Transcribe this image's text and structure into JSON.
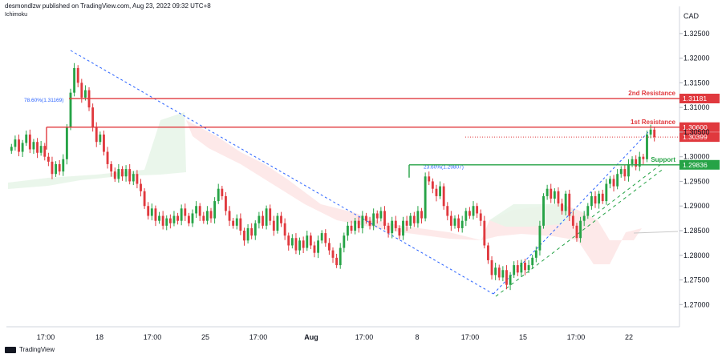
{
  "header": {
    "publisher": "desmondlzw published on TradingView.com, Aug 23, 2022 09:32 UTC+8",
    "indicator": "Ichimoku"
  },
  "footer": {
    "brand": "TradingView"
  },
  "colors": {
    "up": "#26a346",
    "down": "#e0393e",
    "resistance": "#e0393e",
    "support": "#26a346",
    "fib": "#2962ff",
    "cloud_green": "#e8f5e9",
    "cloud_red": "#fde7e7"
  },
  "chart_data": {
    "type": "candlestick",
    "currency_label": "CAD",
    "y_ticks": [
      "1.32500",
      "1.32000",
      "1.31500",
      "1.31000",
      "1.30500",
      "1.30000",
      "1.29500",
      "1.29000",
      "1.28500",
      "1.28000",
      "1.27500",
      "1.27000"
    ],
    "x_ticks": [
      "17:00",
      "18",
      "17:00",
      "25",
      "17:00",
      "Aug",
      "17:00",
      "8",
      "17:00",
      "15",
      "17:00",
      "22"
    ],
    "ylim": [
      1.2655,
      1.3305
    ],
    "levels": [
      {
        "name": "2nd Resistance",
        "price": 1.31181,
        "label": "1.31181",
        "type": "resistance"
      },
      {
        "name": "1st Resistance",
        "price": 1.306,
        "label": "1.30600",
        "type": "resistance"
      },
      {
        "name": "current",
        "price": 1.30399,
        "label": "1.30399",
        "type": "current"
      },
      {
        "name": "Support",
        "price": 1.29836,
        "label": "1.29836",
        "type": "support"
      }
    ],
    "annotations": [
      {
        "text": "78.60%(1.31169)",
        "price": 1.31169
      },
      {
        "text": "23.60%(1.29807)",
        "price": 1.29807
      }
    ],
    "closes": [
      1.302,
      1.3035,
      1.301,
      1.3028,
      1.3045,
      1.3015,
      1.303,
      1.3008,
      1.3022,
      1.3,
      1.299,
      1.2965,
      1.2985,
      1.297,
      1.2995,
      1.306,
      1.313,
      1.318,
      1.315,
      1.312,
      1.3135,
      1.31,
      1.306,
      1.303,
      1.3045,
      1.301,
      1.2985,
      1.297,
      1.2955,
      1.2975,
      1.296,
      1.2975,
      1.295,
      1.2965,
      1.2945,
      1.293,
      1.29,
      1.288,
      1.2895,
      1.287,
      1.288,
      1.286,
      1.2875,
      1.2865,
      1.288,
      1.287,
      1.2895,
      1.288,
      1.2865,
      1.2885,
      1.29,
      1.288,
      1.287,
      1.289,
      1.2875,
      1.291,
      1.2935,
      1.292,
      1.289,
      1.287,
      1.286,
      1.2875,
      1.285,
      1.283,
      1.2855,
      1.284,
      1.2865,
      1.288,
      1.286,
      1.2895,
      1.287,
      1.285,
      1.288,
      1.2865,
      1.284,
      1.282,
      1.2835,
      1.281,
      1.283,
      1.2815,
      1.284,
      1.282,
      1.2805,
      1.283,
      1.2845,
      1.2825,
      1.281,
      1.2795,
      1.278,
      1.2815,
      1.284,
      1.286,
      1.285,
      1.287,
      1.2855,
      1.288,
      1.287,
      1.286,
      1.2885,
      1.2875,
      1.289,
      1.286,
      1.2845,
      1.287,
      1.2855,
      1.284,
      1.287,
      1.286,
      1.288,
      1.2865,
      1.289,
      1.2875,
      1.296,
      1.295,
      1.2935,
      1.292,
      1.294,
      1.29,
      1.288,
      1.286,
      1.2875,
      1.2855,
      1.287,
      1.289,
      1.288,
      1.29,
      1.2885,
      1.287,
      1.282,
      1.279,
      1.276,
      1.2775,
      1.2755,
      1.277,
      1.274,
      1.276,
      1.278,
      1.2765,
      1.2785,
      1.277,
      1.278,
      1.2795,
      1.281,
      1.286,
      1.292,
      1.2935,
      1.2915,
      1.293,
      1.2905,
      1.289,
      1.2925,
      1.288,
      1.286,
      1.2835,
      1.287,
      1.288,
      1.29,
      1.292,
      1.2905,
      1.2925,
      1.291,
      1.2945,
      1.2955,
      1.294,
      1.2965,
      1.2975,
      1.296,
      1.2985,
      1.2995,
      1.298,
      1.3,
      1.2995,
      1.3045,
      1.3055,
      1.304
    ]
  }
}
